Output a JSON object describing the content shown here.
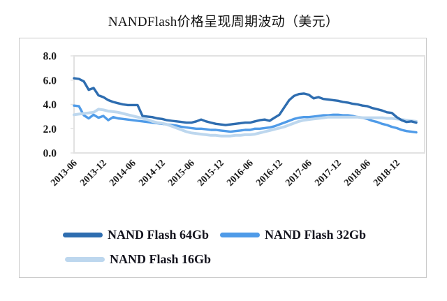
{
  "title": "NANDFlash价格呈现周期波动（美元）",
  "colors": {
    "series_64gb": "#2E6DB0",
    "series_32gb": "#4F9BE8",
    "series_16gb": "#BDD7EE",
    "plot_border": "#E2E2E2",
    "outer_border": "#C9C9C9",
    "text": "#1B1B1B"
  },
  "chart_data": {
    "type": "line",
    "title": "NANDFlash价格呈现周期波动（美元）",
    "xlabel": "",
    "ylabel": "",
    "ylim": [
      0,
      8
    ],
    "y_ticks": [
      0,
      2,
      4,
      6,
      8
    ],
    "y_tick_labels": [
      "0.0",
      "2.0",
      "4.0",
      "6.0",
      "8.0"
    ],
    "x_tick_labels": [
      "2013-06",
      "2013-12",
      "2014-06",
      "2014-12",
      "2015-06",
      "2015-12",
      "2016-06",
      "2016-12",
      "2017-06",
      "2017-12",
      "2018-06",
      "2018-12"
    ],
    "x_unit": "month",
    "x_start": "2013-06",
    "x_end": "2019-04",
    "grid": false,
    "legend_position": "bottom",
    "series": [
      {
        "name": "NAND Flash 64Gb",
        "color": "#2E6DB0",
        "values": [
          6.15,
          6.1,
          5.9,
          5.2,
          5.35,
          4.75,
          4.6,
          4.35,
          4.2,
          4.1,
          4.0,
          3.95,
          3.95,
          3.95,
          3.05,
          3.0,
          2.95,
          2.85,
          2.8,
          2.7,
          2.65,
          2.6,
          2.55,
          2.5,
          2.5,
          2.6,
          2.75,
          2.6,
          2.5,
          2.4,
          2.35,
          2.3,
          2.35,
          2.4,
          2.45,
          2.5,
          2.5,
          2.6,
          2.7,
          2.75,
          2.65,
          2.9,
          3.15,
          3.75,
          4.35,
          4.7,
          4.85,
          4.9,
          4.8,
          4.5,
          4.6,
          4.45,
          4.4,
          4.35,
          4.3,
          4.2,
          4.15,
          4.05,
          4.0,
          3.9,
          3.85,
          3.7,
          3.6,
          3.5,
          3.35,
          3.3,
          2.95,
          2.7,
          2.55,
          2.6,
          2.5
        ]
      },
      {
        "name": "NAND Flash 32Gb",
        "color": "#4F9BE8",
        "values": [
          3.9,
          3.85,
          3.1,
          2.85,
          3.15,
          2.9,
          3.05,
          2.7,
          2.95,
          2.85,
          2.8,
          2.75,
          2.7,
          2.65,
          2.6,
          2.55,
          2.5,
          2.45,
          2.4,
          2.35,
          2.3,
          2.25,
          2.15,
          2.1,
          2.05,
          2.0,
          2.0,
          1.95,
          1.9,
          1.9,
          1.85,
          1.8,
          1.75,
          1.8,
          1.85,
          1.9,
          1.9,
          2.0,
          2.0,
          2.05,
          2.1,
          2.2,
          2.35,
          2.5,
          2.65,
          2.8,
          2.9,
          2.95,
          2.95,
          3.0,
          3.05,
          3.1,
          3.1,
          3.15,
          3.15,
          3.1,
          3.1,
          3.05,
          2.95,
          2.9,
          2.8,
          2.65,
          2.55,
          2.4,
          2.3,
          2.15,
          2.05,
          1.9,
          1.8,
          1.75,
          1.7
        ]
      },
      {
        "name": "NAND Flash 16Gb",
        "color": "#BDD7EE",
        "values": [
          3.15,
          3.2,
          3.25,
          3.3,
          3.35,
          3.6,
          3.55,
          3.45,
          3.4,
          3.35,
          3.25,
          3.15,
          3.05,
          2.95,
          2.85,
          2.75,
          2.6,
          2.5,
          2.45,
          2.35,
          2.2,
          2.05,
          1.9,
          1.75,
          1.65,
          1.6,
          1.55,
          1.5,
          1.45,
          1.45,
          1.4,
          1.4,
          1.4,
          1.45,
          1.45,
          1.5,
          1.5,
          1.55,
          1.65,
          1.75,
          1.85,
          1.95,
          2.05,
          2.15,
          2.3,
          2.45,
          2.6,
          2.7,
          2.75,
          2.8,
          2.85,
          2.9,
          2.95,
          2.95,
          2.95,
          2.95,
          2.95,
          2.95,
          2.95,
          2.9,
          2.9,
          2.9,
          2.9,
          2.9,
          2.85,
          2.85,
          2.8,
          2.75,
          2.7,
          2.65,
          2.6
        ]
      }
    ]
  }
}
